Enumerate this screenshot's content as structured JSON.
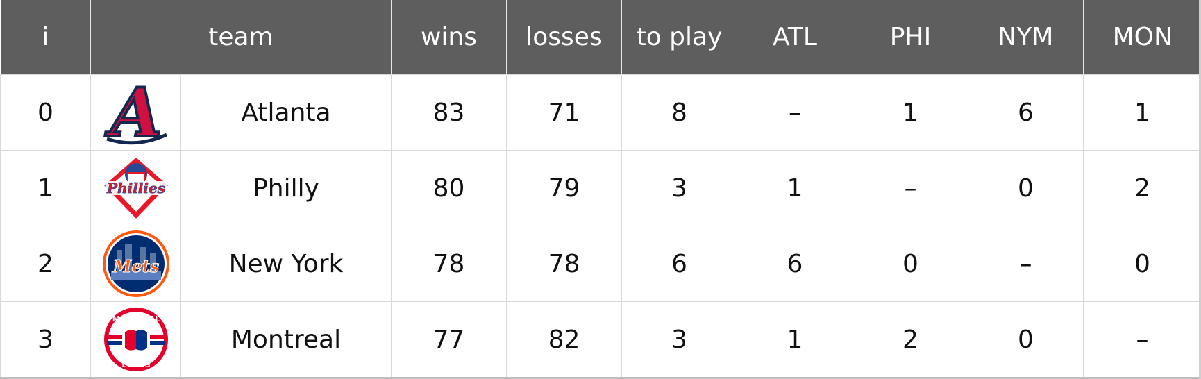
{
  "columns": [
    "i",
    "team",
    "wins",
    "losses",
    "to play",
    "ATL",
    "PHI",
    "NYM",
    "MON"
  ],
  "rows": [
    {
      "i": "0",
      "logo": "atlanta-braves-logo",
      "team": "Atlanta",
      "wins": "83",
      "losses": "71",
      "to_play": "8",
      "atl": "–",
      "phi": "1",
      "nym": "6",
      "mon": "1"
    },
    {
      "i": "1",
      "logo": "philadelphia-phillies-logo",
      "team": "Philly",
      "wins": "80",
      "losses": "79",
      "to_play": "3",
      "atl": "1",
      "phi": "–",
      "nym": "0",
      "mon": "2"
    },
    {
      "i": "2",
      "logo": "new-york-mets-logo",
      "team": "New York",
      "wins": "78",
      "losses": "78",
      "to_play": "6",
      "atl": "6",
      "phi": "0",
      "nym": "–",
      "mon": "0"
    },
    {
      "i": "3",
      "logo": "montreal-expos-logo",
      "team": "Montreal",
      "wins": "77",
      "losses": "82",
      "to_play": "3",
      "atl": "1",
      "phi": "2",
      "nym": "0",
      "mon": "–"
    }
  ],
  "logo_text": {
    "atlanta": "A",
    "philly": "Phillies",
    "mets": "Mets",
    "montreal_top": "MONTREAL",
    "montreal_bottom": "EXPOS"
  },
  "colors": {
    "header_bg": "#5e5e5e",
    "header_text": "#ffffff",
    "braves_red": "#ce1141",
    "braves_navy": "#13274f",
    "phillies_red": "#e81828",
    "phillies_blue": "#284898",
    "mets_blue": "#002d72",
    "mets_orange": "#ff5910",
    "expos_red": "#e4002b",
    "expos_blue": "#003087"
  }
}
